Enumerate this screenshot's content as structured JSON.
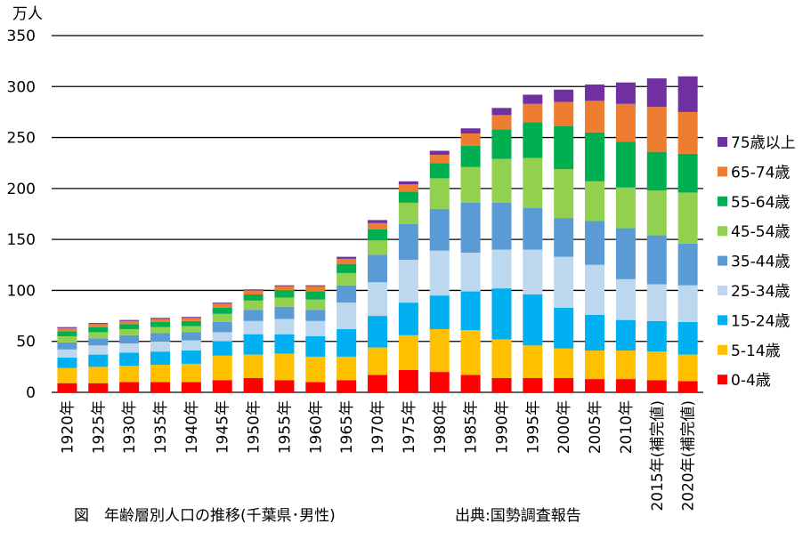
{
  "chart_data": {
    "type": "bar",
    "stacked": true,
    "unit_label": "万人",
    "ylim": [
      0,
      350
    ],
    "yticks": [
      0,
      50,
      100,
      150,
      200,
      250,
      300,
      350
    ],
    "grid": true,
    "legend_position": "right",
    "categories": [
      "1920年",
      "1925年",
      "1930年",
      "1935年",
      "1940年",
      "1945年",
      "1950年",
      "1955年",
      "1960年",
      "1965年",
      "1970年",
      "1975年",
      "1980年",
      "1985年",
      "1990年",
      "1995年",
      "2000年",
      "2005年",
      "2010年",
      "2015年(補完値)",
      "2020年(補完値)"
    ],
    "series": [
      {
        "name": "0-4歳",
        "color": "#ff0000",
        "values": [
          9,
          9,
          10,
          10,
          10,
          12,
          14,
          12,
          10,
          12,
          17,
          22,
          20,
          17,
          14,
          14,
          14,
          13,
          13,
          12,
          11
        ]
      },
      {
        "name": "5-14歳",
        "color": "#ffc000",
        "values": [
          15,
          16,
          16,
          17,
          18,
          24,
          23,
          26,
          25,
          23,
          27,
          34,
          42,
          44,
          38,
          32,
          29,
          28,
          28,
          28,
          26
        ]
      },
      {
        "name": "15-24歳",
        "color": "#00b0f0",
        "values": [
          10,
          12,
          13,
          13,
          13,
          14,
          20,
          19,
          20,
          27,
          31,
          32,
          33,
          38,
          50,
          50,
          40,
          35,
          30,
          30,
          32
        ]
      },
      {
        "name": "25-34歳",
        "color": "#bdd7ee",
        "values": [
          8,
          9,
          9,
          10,
          10,
          9,
          13,
          15,
          15,
          26,
          33,
          42,
          44,
          38,
          38,
          44,
          50,
          49,
          40,
          36,
          36
        ]
      },
      {
        "name": "35-44歳",
        "color": "#5b9bd5",
        "values": [
          7,
          7,
          8,
          8,
          8,
          10,
          11,
          12,
          11,
          17,
          27,
          35,
          41,
          49,
          46,
          41,
          38,
          43,
          50,
          48,
          41
        ]
      },
      {
        "name": "45-54歳",
        "color": "#92d050",
        "values": [
          6,
          6,
          6,
          6,
          6,
          8,
          9,
          9,
          10,
          12,
          14,
          21,
          30,
          35,
          43,
          49,
          48,
          39,
          40,
          44,
          50
        ]
      },
      {
        "name": "55-64歳",
        "color": "#00b050",
        "values": [
          5,
          5,
          5,
          5,
          5,
          6,
          6,
          7,
          8,
          9,
          11,
          11,
          15,
          21,
          29,
          35,
          42,
          48,
          45,
          38,
          38
        ]
      },
      {
        "name": "65-74歳",
        "color": "#ed7d31",
        "values": [
          3,
          3,
          3,
          3,
          3,
          4,
          4,
          4,
          5,
          5,
          6,
          7,
          8,
          12,
          14,
          18,
          24,
          31,
          37,
          44,
          41
        ]
      },
      {
        "name": "75歳以上",
        "color": "#7030a0",
        "values": [
          1,
          1,
          1,
          1,
          1,
          1,
          1,
          1,
          1,
          2,
          3,
          3,
          4,
          5,
          7,
          9,
          12,
          16,
          21,
          28,
          35
        ]
      }
    ]
  },
  "figure_caption": "図　年齢層別人口の推移(千葉県･男性)",
  "source_caption": "出典:国勢調査報告"
}
